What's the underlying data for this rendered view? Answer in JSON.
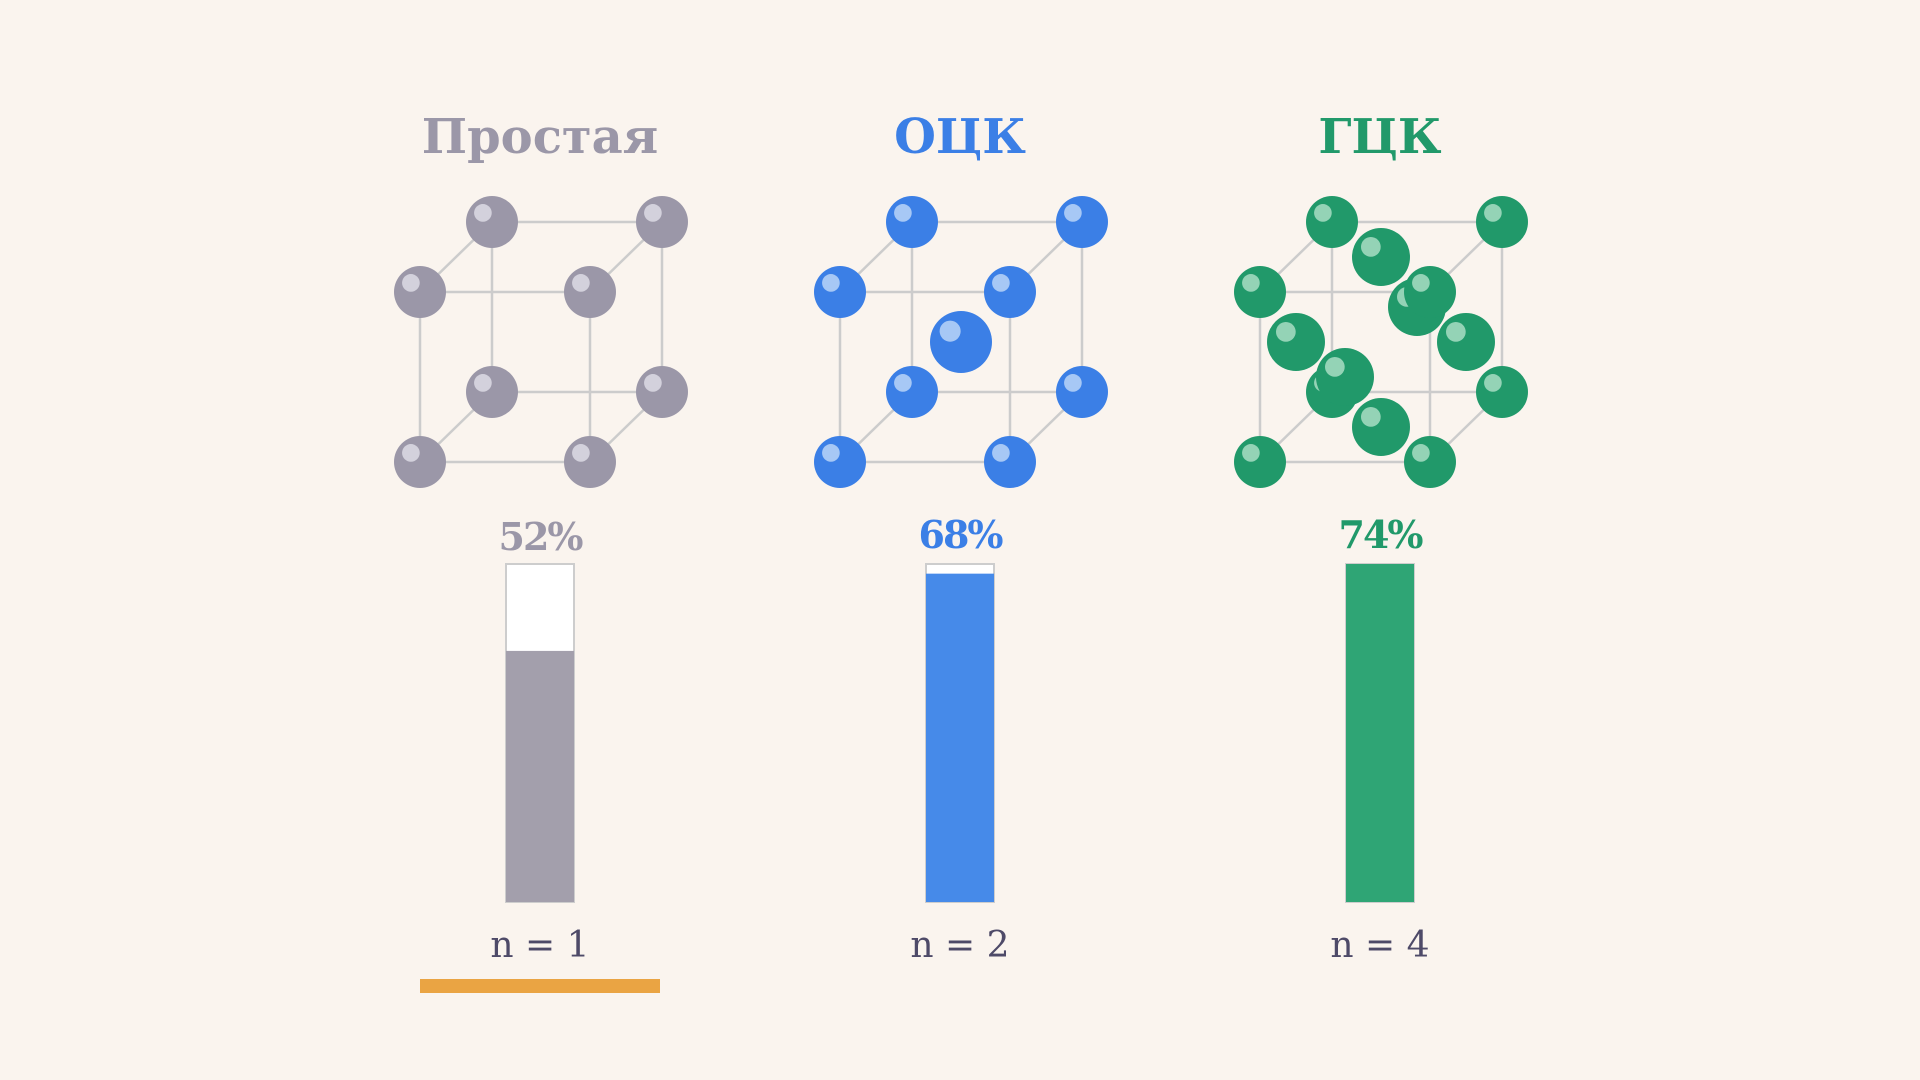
{
  "structures": [
    {
      "id": "simple",
      "title": "Простая",
      "color": "#9b97a8",
      "bar_color": "#a39fac",
      "highlight_color": "#d3d1dc",
      "packing_percent": 52,
      "packing_label": "52%",
      "atoms_label": "n = 1",
      "selected": true,
      "extra_atoms": "none"
    },
    {
      "id": "bcc",
      "title": "ОЦК",
      "color": "#3b7fe6",
      "bar_color": "#468ae9",
      "highlight_color": "#a7c8f5",
      "packing_percent": 68,
      "packing_label": "68%",
      "atoms_label": "n = 2",
      "selected": false,
      "extra_atoms": "body-center"
    },
    {
      "id": "fcc",
      "title": "ГЦК",
      "color": "#21996a",
      "bar_color": "#2fa575",
      "highlight_color": "#94d3b6",
      "packing_percent": 74,
      "packing_label": "74%",
      "atoms_label": "n = 4",
      "selected": false,
      "extra_atoms": "face-centers"
    }
  ],
  "selection_color": "#eaa443",
  "edge_color": "#cccccc"
}
